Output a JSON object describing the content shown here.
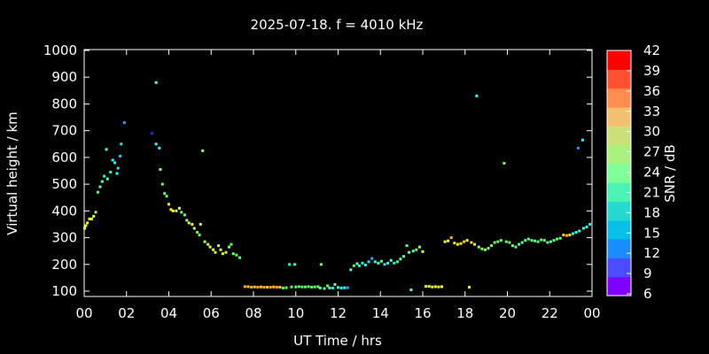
{
  "chart_data": {
    "type": "scatter",
    "title": "2025-07-18. f = 4010 kHz",
    "xlabel": "UT Time / hrs",
    "ylabel": "Virtual height / km",
    "xlim": [
      0,
      24
    ],
    "ylim": [
      75,
      1000
    ],
    "x_ticks": [
      "00",
      "02",
      "04",
      "06",
      "08",
      "10",
      "12",
      "14",
      "16",
      "18",
      "20",
      "22",
      "00"
    ],
    "y_ticks": [
      100,
      200,
      300,
      400,
      500,
      600,
      700,
      800,
      900,
      1000
    ],
    "grid": false,
    "colorbar": {
      "label": "SNR / dB",
      "range": [
        6,
        42
      ],
      "ticks": [
        6,
        9,
        12,
        15,
        18,
        21,
        24,
        27,
        30,
        33,
        36,
        39,
        42
      ],
      "colors": [
        "#8000ff",
        "#4a4aff",
        "#1a8cff",
        "#08bfe8",
        "#26d9d0",
        "#4cf2b4",
        "#80ff99",
        "#a8f280",
        "#cce07a",
        "#f2c070",
        "#ff8c50",
        "#ff5030",
        "#ff0000"
      ]
    },
    "points": [
      {
        "x": 0.02,
        "y": 335,
        "snr": 33
      },
      {
        "x": 0.08,
        "y": 345,
        "snr": 33
      },
      {
        "x": 0.15,
        "y": 355,
        "snr": 34
      },
      {
        "x": 0.25,
        "y": 370,
        "snr": 33
      },
      {
        "x": 0.35,
        "y": 370,
        "snr": 34
      },
      {
        "x": 0.45,
        "y": 380,
        "snr": 31
      },
      {
        "x": 0.55,
        "y": 395,
        "snr": 29
      },
      {
        "x": 0.65,
        "y": 470,
        "snr": 24
      },
      {
        "x": 0.75,
        "y": 490,
        "snr": 22
      },
      {
        "x": 0.85,
        "y": 510,
        "snr": 21
      },
      {
        "x": 0.95,
        "y": 530,
        "snr": 20
      },
      {
        "x": 1.05,
        "y": 630,
        "snr": 23
      },
      {
        "x": 1.1,
        "y": 520,
        "snr": 21
      },
      {
        "x": 1.25,
        "y": 545,
        "snr": 20
      },
      {
        "x": 1.35,
        "y": 590,
        "snr": 18
      },
      {
        "x": 1.45,
        "y": 580,
        "snr": 19
      },
      {
        "x": 1.55,
        "y": 540,
        "snr": 18
      },
      {
        "x": 1.6,
        "y": 560,
        "snr": 17
      },
      {
        "x": 1.7,
        "y": 605,
        "snr": 16
      },
      {
        "x": 1.75,
        "y": 650,
        "snr": 17
      },
      {
        "x": 1.9,
        "y": 730,
        "snr": 14
      },
      {
        "x": 3.2,
        "y": 690,
        "snr": 10
      },
      {
        "x": 3.4,
        "y": 880,
        "snr": 21
      },
      {
        "x": 3.4,
        "y": 650,
        "snr": 18
      },
      {
        "x": 3.55,
        "y": 635,
        "snr": 18
      },
      {
        "x": 3.6,
        "y": 555,
        "snr": 28
      },
      {
        "x": 3.7,
        "y": 500,
        "snr": 27
      },
      {
        "x": 3.8,
        "y": 465,
        "snr": 25
      },
      {
        "x": 3.9,
        "y": 455,
        "snr": 26
      },
      {
        "x": 4.0,
        "y": 425,
        "snr": 33
      },
      {
        "x": 4.1,
        "y": 405,
        "snr": 34
      },
      {
        "x": 4.2,
        "y": 400,
        "snr": 34
      },
      {
        "x": 4.35,
        "y": 400,
        "snr": 32
      },
      {
        "x": 4.5,
        "y": 410,
        "snr": 32
      },
      {
        "x": 4.6,
        "y": 395,
        "snr": 24
      },
      {
        "x": 4.75,
        "y": 385,
        "snr": 23
      },
      {
        "x": 4.85,
        "y": 365,
        "snr": 28
      },
      {
        "x": 4.95,
        "y": 355,
        "snr": 31
      },
      {
        "x": 5.1,
        "y": 350,
        "snr": 34
      },
      {
        "x": 5.2,
        "y": 335,
        "snr": 31
      },
      {
        "x": 5.35,
        "y": 320,
        "snr": 27
      },
      {
        "x": 5.45,
        "y": 310,
        "snr": 26
      },
      {
        "x": 5.5,
        "y": 350,
        "snr": 33
      },
      {
        "x": 5.6,
        "y": 625,
        "snr": 29
      },
      {
        "x": 5.7,
        "y": 285,
        "snr": 31
      },
      {
        "x": 5.85,
        "y": 275,
        "snr": 31
      },
      {
        "x": 5.95,
        "y": 265,
        "snr": 33
      },
      {
        "x": 6.1,
        "y": 255,
        "snr": 34
      },
      {
        "x": 6.2,
        "y": 245,
        "snr": 31
      },
      {
        "x": 6.35,
        "y": 270,
        "snr": 31
      },
      {
        "x": 6.45,
        "y": 255,
        "snr": 32
      },
      {
        "x": 6.55,
        "y": 240,
        "snr": 34
      },
      {
        "x": 6.7,
        "y": 245,
        "snr": 31
      },
      {
        "x": 6.85,
        "y": 265,
        "snr": 28
      },
      {
        "x": 6.95,
        "y": 275,
        "snr": 26
      },
      {
        "x": 7.05,
        "y": 240,
        "snr": 27
      },
      {
        "x": 7.2,
        "y": 235,
        "snr": 26
      },
      {
        "x": 7.35,
        "y": 225,
        "snr": 24
      },
      {
        "x": 7.6,
        "y": 117,
        "snr": 37
      },
      {
        "x": 7.75,
        "y": 117,
        "snr": 36
      },
      {
        "x": 7.9,
        "y": 115,
        "snr": 37
      },
      {
        "x": 8.05,
        "y": 116,
        "snr": 36
      },
      {
        "x": 8.2,
        "y": 115,
        "snr": 37
      },
      {
        "x": 8.35,
        "y": 116,
        "snr": 36
      },
      {
        "x": 8.5,
        "y": 115,
        "snr": 37
      },
      {
        "x": 8.65,
        "y": 115,
        "snr": 36
      },
      {
        "x": 8.8,
        "y": 115,
        "snr": 37
      },
      {
        "x": 8.95,
        "y": 116,
        "snr": 36
      },
      {
        "x": 9.1,
        "y": 115,
        "snr": 37
      },
      {
        "x": 9.25,
        "y": 115,
        "snr": 36
      },
      {
        "x": 9.4,
        "y": 112,
        "snr": 26
      },
      {
        "x": 9.55,
        "y": 113,
        "snr": 25
      },
      {
        "x": 9.7,
        "y": 200,
        "snr": 20
      },
      {
        "x": 9.8,
        "y": 116,
        "snr": 26
      },
      {
        "x": 9.95,
        "y": 200,
        "snr": 20
      },
      {
        "x": 10.0,
        "y": 116,
        "snr": 25
      },
      {
        "x": 10.15,
        "y": 117,
        "snr": 25
      },
      {
        "x": 10.3,
        "y": 116,
        "snr": 27
      },
      {
        "x": 10.45,
        "y": 116,
        "snr": 25
      },
      {
        "x": 10.6,
        "y": 117,
        "snr": 26
      },
      {
        "x": 10.75,
        "y": 115,
        "snr": 25
      },
      {
        "x": 10.9,
        "y": 116,
        "snr": 26
      },
      {
        "x": 11.05,
        "y": 117,
        "snr": 26
      },
      {
        "x": 11.15,
        "y": 112,
        "snr": 21
      },
      {
        "x": 11.2,
        "y": 200,
        "snr": 26
      },
      {
        "x": 11.35,
        "y": 110,
        "snr": 23
      },
      {
        "x": 11.5,
        "y": 120,
        "snr": 26
      },
      {
        "x": 11.6,
        "y": 112,
        "snr": 21
      },
      {
        "x": 11.75,
        "y": 112,
        "snr": 20
      },
      {
        "x": 11.85,
        "y": 125,
        "snr": 21
      },
      {
        "x": 12.0,
        "y": 114,
        "snr": 21
      },
      {
        "x": 12.15,
        "y": 112,
        "snr": 18
      },
      {
        "x": 12.3,
        "y": 113,
        "snr": 19
      },
      {
        "x": 12.45,
        "y": 113,
        "snr": 15
      },
      {
        "x": 12.6,
        "y": 180,
        "snr": 23
      },
      {
        "x": 12.75,
        "y": 195,
        "snr": 26
      },
      {
        "x": 12.9,
        "y": 203,
        "snr": 21
      },
      {
        "x": 13.0,
        "y": 195,
        "snr": 20
      },
      {
        "x": 13.15,
        "y": 205,
        "snr": 20
      },
      {
        "x": 13.3,
        "y": 198,
        "snr": 19
      },
      {
        "x": 13.45,
        "y": 210,
        "snr": 17
      },
      {
        "x": 13.6,
        "y": 222,
        "snr": 15
      },
      {
        "x": 13.75,
        "y": 210,
        "snr": 20
      },
      {
        "x": 13.9,
        "y": 205,
        "snr": 21
      },
      {
        "x": 14.05,
        "y": 212,
        "snr": 24
      },
      {
        "x": 14.2,
        "y": 200,
        "snr": 17
      },
      {
        "x": 14.35,
        "y": 205,
        "snr": 19
      },
      {
        "x": 14.5,
        "y": 215,
        "snr": 21
      },
      {
        "x": 14.65,
        "y": 205,
        "snr": 20
      },
      {
        "x": 14.8,
        "y": 210,
        "snr": 24
      },
      {
        "x": 14.95,
        "y": 220,
        "snr": 23
      },
      {
        "x": 15.1,
        "y": 230,
        "snr": 24
      },
      {
        "x": 15.25,
        "y": 270,
        "snr": 24
      },
      {
        "x": 15.35,
        "y": 245,
        "snr": 22
      },
      {
        "x": 15.45,
        "y": 105,
        "snr": 22
      },
      {
        "x": 15.55,
        "y": 250,
        "snr": 24
      },
      {
        "x": 15.7,
        "y": 255,
        "snr": 25
      },
      {
        "x": 15.85,
        "y": 265,
        "snr": 29
      },
      {
        "x": 16.0,
        "y": 248,
        "snr": 32
      },
      {
        "x": 16.15,
        "y": 118,
        "snr": 33
      },
      {
        "x": 16.3,
        "y": 118,
        "snr": 32
      },
      {
        "x": 16.45,
        "y": 116,
        "snr": 33
      },
      {
        "x": 16.6,
        "y": 117,
        "snr": 34
      },
      {
        "x": 16.75,
        "y": 116,
        "snr": 33
      },
      {
        "x": 16.9,
        "y": 117,
        "snr": 34
      },
      {
        "x": 17.05,
        "y": 285,
        "snr": 34
      },
      {
        "x": 17.2,
        "y": 288,
        "snr": 34
      },
      {
        "x": 17.35,
        "y": 300,
        "snr": 37
      },
      {
        "x": 17.5,
        "y": 280,
        "snr": 35
      },
      {
        "x": 17.65,
        "y": 275,
        "snr": 33
      },
      {
        "x": 17.8,
        "y": 278,
        "snr": 35
      },
      {
        "x": 17.95,
        "y": 285,
        "snr": 36
      },
      {
        "x": 18.1,
        "y": 290,
        "snr": 34
      },
      {
        "x": 18.2,
        "y": 115,
        "snr": 33
      },
      {
        "x": 18.3,
        "y": 282,
        "snr": 35
      },
      {
        "x": 18.45,
        "y": 275,
        "snr": 33
      },
      {
        "x": 18.55,
        "y": 830,
        "snr": 18
      },
      {
        "x": 18.65,
        "y": 265,
        "snr": 29
      },
      {
        "x": 18.8,
        "y": 258,
        "snr": 28
      },
      {
        "x": 18.95,
        "y": 255,
        "snr": 29
      },
      {
        "x": 19.1,
        "y": 260,
        "snr": 28
      },
      {
        "x": 19.25,
        "y": 270,
        "snr": 27
      },
      {
        "x": 19.4,
        "y": 282,
        "snr": 26
      },
      {
        "x": 19.55,
        "y": 285,
        "snr": 25
      },
      {
        "x": 19.7,
        "y": 290,
        "snr": 26
      },
      {
        "x": 19.85,
        "y": 578,
        "snr": 24
      },
      {
        "x": 19.95,
        "y": 285,
        "snr": 25
      },
      {
        "x": 20.1,
        "y": 282,
        "snr": 26
      },
      {
        "x": 20.25,
        "y": 270,
        "snr": 24
      },
      {
        "x": 20.4,
        "y": 265,
        "snr": 25
      },
      {
        "x": 20.55,
        "y": 275,
        "snr": 24
      },
      {
        "x": 20.7,
        "y": 282,
        "snr": 25
      },
      {
        "x": 20.85,
        "y": 290,
        "snr": 24
      },
      {
        "x": 21.0,
        "y": 295,
        "snr": 25
      },
      {
        "x": 21.15,
        "y": 290,
        "snr": 26
      },
      {
        "x": 21.3,
        "y": 288,
        "snr": 25
      },
      {
        "x": 21.45,
        "y": 285,
        "snr": 24
      },
      {
        "x": 21.6,
        "y": 292,
        "snr": 26
      },
      {
        "x": 21.75,
        "y": 290,
        "snr": 25
      },
      {
        "x": 21.9,
        "y": 282,
        "snr": 24
      },
      {
        "x": 22.05,
        "y": 285,
        "snr": 25
      },
      {
        "x": 22.2,
        "y": 290,
        "snr": 24
      },
      {
        "x": 22.35,
        "y": 295,
        "snr": 26
      },
      {
        "x": 22.5,
        "y": 298,
        "snr": 25
      },
      {
        "x": 22.65,
        "y": 310,
        "snr": 36
      },
      {
        "x": 22.8,
        "y": 308,
        "snr": 37
      },
      {
        "x": 22.95,
        "y": 310,
        "snr": 35
      },
      {
        "x": 23.1,
        "y": 315,
        "snr": 19
      },
      {
        "x": 23.25,
        "y": 320,
        "snr": 18
      },
      {
        "x": 23.35,
        "y": 635,
        "snr": 14
      },
      {
        "x": 23.4,
        "y": 325,
        "snr": 20
      },
      {
        "x": 23.55,
        "y": 665,
        "snr": 18
      },
      {
        "x": 23.6,
        "y": 335,
        "snr": 19
      },
      {
        "x": 23.75,
        "y": 340,
        "snr": 18
      },
      {
        "x": 23.9,
        "y": 350,
        "snr": 19
      }
    ]
  }
}
